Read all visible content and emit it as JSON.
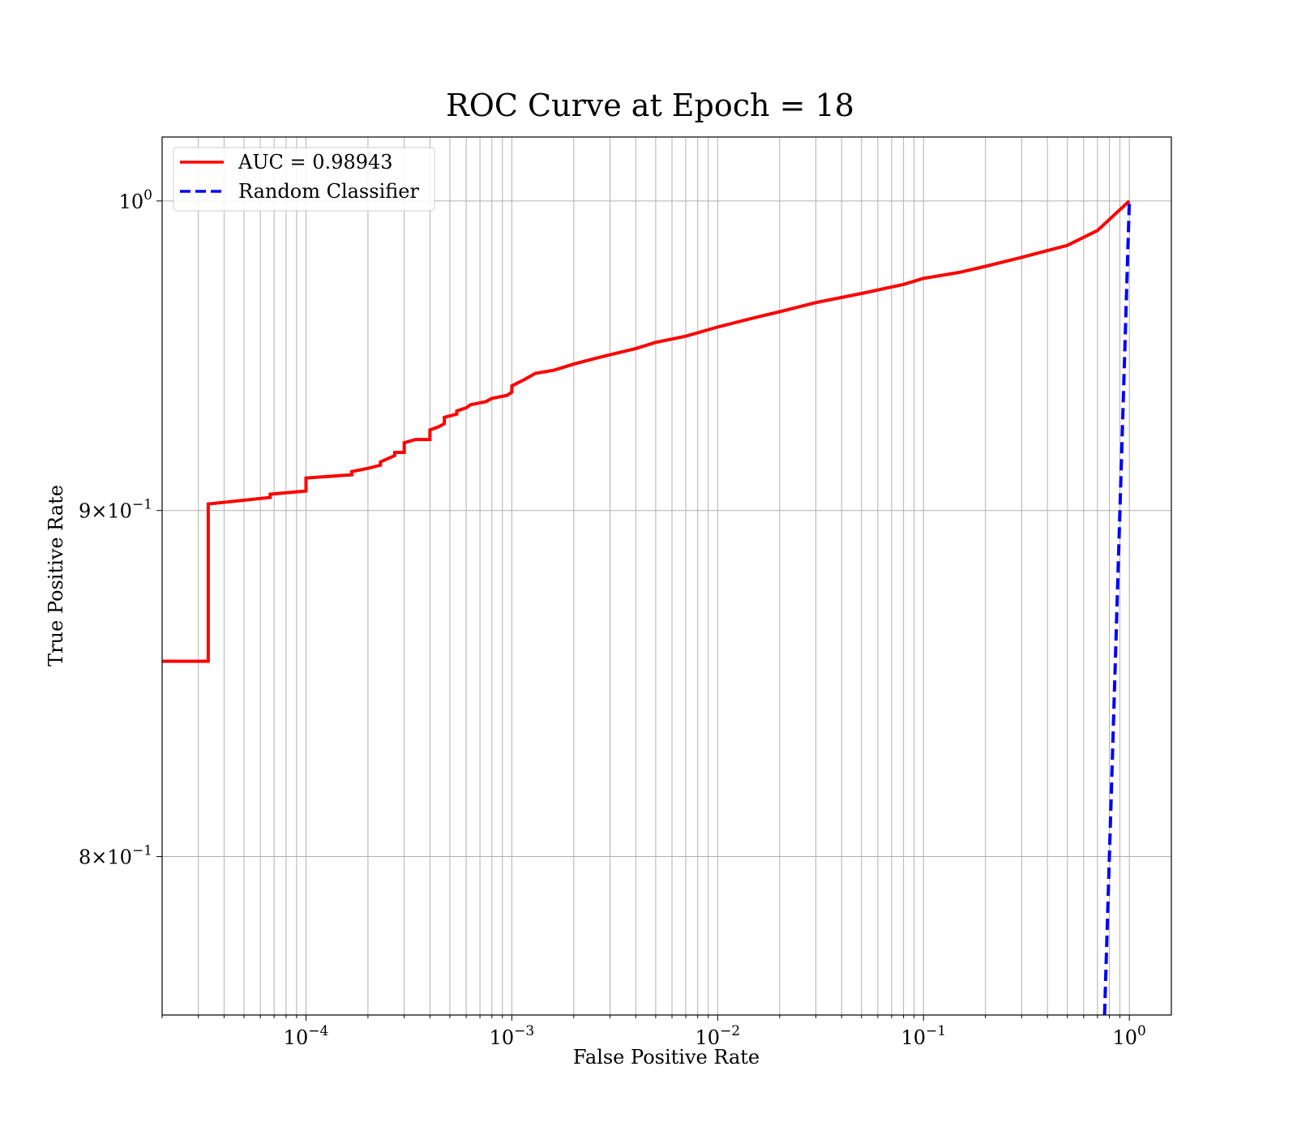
{
  "chart_data": {
    "type": "line",
    "title": "ROC Curve at Epoch = 18",
    "xlabel": "False Positive Rate",
    "ylabel": "True Positive Rate",
    "xscale": "log",
    "yscale": "log",
    "xlim": [
      2e-05,
      1.6
    ],
    "ylim": [
      0.758,
      1.022
    ],
    "grid": "both-major-and-minor-x, major-y",
    "legend_position": "upper-left",
    "x_ticks": [
      {
        "value": 0.0001,
        "base": "10",
        "exp": "−4"
      },
      {
        "value": 0.001,
        "base": "10",
        "exp": "−3"
      },
      {
        "value": 0.01,
        "base": "10",
        "exp": "−2"
      },
      {
        "value": 0.1,
        "base": "10",
        "exp": "−1"
      },
      {
        "value": 1,
        "base": "10",
        "exp": "0"
      }
    ],
    "y_ticks": [
      {
        "value": 1.0,
        "mant": "",
        "base": "10",
        "exp": "0"
      },
      {
        "value": 0.9,
        "mant": "9×",
        "base": "10",
        "exp": "−1"
      },
      {
        "value": 0.8,
        "mant": "8×",
        "base": "10",
        "exp": "−1"
      }
    ],
    "series": [
      {
        "name": "AUC = 0.98943",
        "color": "#ff0000",
        "dash": "solid",
        "x": [
          2e-05,
          3.35e-05,
          3.35e-05,
          6.7e-05,
          6.7e-05,
          0.0001,
          0.0001,
          0.000167,
          0.000167,
          0.0002,
          0.00023,
          0.00023,
          0.00027,
          0.00027,
          0.0003,
          0.0003,
          0.00034,
          0.0004,
          0.0004,
          0.00044,
          0.00047,
          0.00047,
          0.00054,
          0.00054,
          0.0006,
          0.00063,
          0.00075,
          0.0008,
          0.00095,
          0.001,
          0.001,
          0.00115,
          0.0013,
          0.0016,
          0.002,
          0.0026,
          0.003,
          0.004,
          0.005,
          0.007,
          0.01,
          0.015,
          0.02,
          0.03,
          0.05,
          0.08,
          0.1,
          0.15,
          0.2,
          0.3,
          0.5,
          0.7,
          1.0
        ],
        "y": [
          0.855,
          0.855,
          0.902,
          0.904,
          0.905,
          0.906,
          0.91,
          0.911,
          0.912,
          0.913,
          0.914,
          0.915,
          0.917,
          0.918,
          0.918,
          0.921,
          0.922,
          0.922,
          0.925,
          0.926,
          0.927,
          0.929,
          0.93,
          0.931,
          0.932,
          0.933,
          0.934,
          0.935,
          0.936,
          0.937,
          0.939,
          0.941,
          0.943,
          0.944,
          0.946,
          0.948,
          0.949,
          0.951,
          0.953,
          0.955,
          0.958,
          0.961,
          0.963,
          0.966,
          0.969,
          0.972,
          0.974,
          0.976,
          0.978,
          0.981,
          0.985,
          0.99,
          1.0
        ]
      },
      {
        "name": "Random Classifier",
        "color": "#0000ff",
        "dash": "dashed",
        "x": [
          0.758,
          1.0
        ],
        "y": [
          0.758,
          1.0
        ]
      }
    ]
  }
}
